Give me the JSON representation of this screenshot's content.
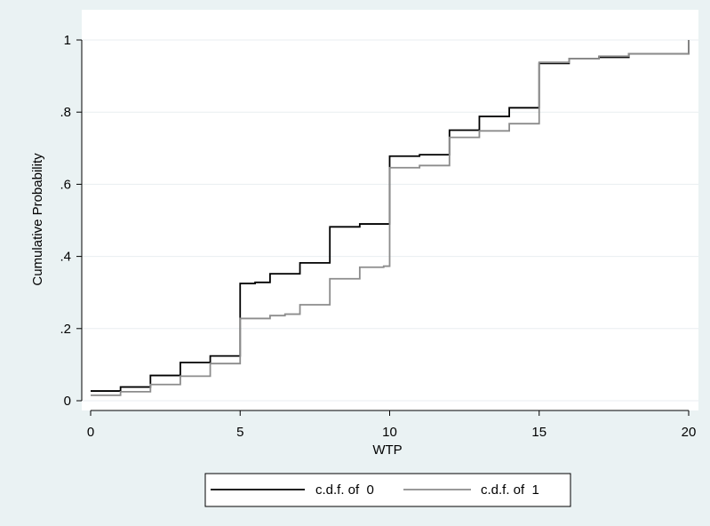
{
  "chart_data": {
    "type": "line",
    "step": true,
    "xlabel": "WTP",
    "ylabel": "Cumulative Probability",
    "xlim": [
      0,
      20
    ],
    "ylim": [
      0,
      1
    ],
    "xticks": [
      0,
      5,
      10,
      15,
      20
    ],
    "xtick_labels": [
      "0",
      "5",
      "10",
      "15",
      "20"
    ],
    "yticks": [
      0,
      0.2,
      0.4,
      0.6,
      0.8,
      1
    ],
    "ytick_labels": [
      "0",
      ".2",
      ".4",
      ".6",
      ".8",
      "1"
    ],
    "grid": true,
    "legend_position": "bottom",
    "series": [
      {
        "name": "c.d.f. of  0",
        "color": "#000000",
        "points": [
          [
            0,
            0.027
          ],
          [
            1,
            0.038
          ],
          [
            2,
            0.07
          ],
          [
            3,
            0.106
          ],
          [
            4,
            0.124
          ],
          [
            5,
            0.325
          ],
          [
            5.5,
            0.328
          ],
          [
            6,
            0.352
          ],
          [
            7,
            0.382
          ],
          [
            8,
            0.482
          ],
          [
            9,
            0.49
          ],
          [
            10,
            0.678
          ],
          [
            11,
            0.682
          ],
          [
            12,
            0.75
          ],
          [
            13,
            0.788
          ],
          [
            14,
            0.812
          ],
          [
            15,
            0.935
          ],
          [
            16,
            0.948
          ],
          [
            17,
            0.952
          ],
          [
            18,
            0.962
          ],
          [
            20,
            1.0
          ]
        ]
      },
      {
        "name": "c.d.f. of  1",
        "color": "#8c8c8c",
        "points": [
          [
            0,
            0.015
          ],
          [
            1,
            0.025
          ],
          [
            2,
            0.045
          ],
          [
            3,
            0.068
          ],
          [
            4,
            0.103
          ],
          [
            5,
            0.228
          ],
          [
            6,
            0.236
          ],
          [
            6.5,
            0.24
          ],
          [
            7,
            0.266
          ],
          [
            8,
            0.338
          ],
          [
            9,
            0.37
          ],
          [
            9.8,
            0.373
          ],
          [
            10,
            0.646
          ],
          [
            11,
            0.652
          ],
          [
            12,
            0.73
          ],
          [
            13,
            0.748
          ],
          [
            14,
            0.768
          ],
          [
            15,
            0.938
          ],
          [
            16,
            0.948
          ],
          [
            17,
            0.955
          ],
          [
            18,
            0.962
          ],
          [
            20,
            1.0
          ]
        ]
      }
    ]
  }
}
